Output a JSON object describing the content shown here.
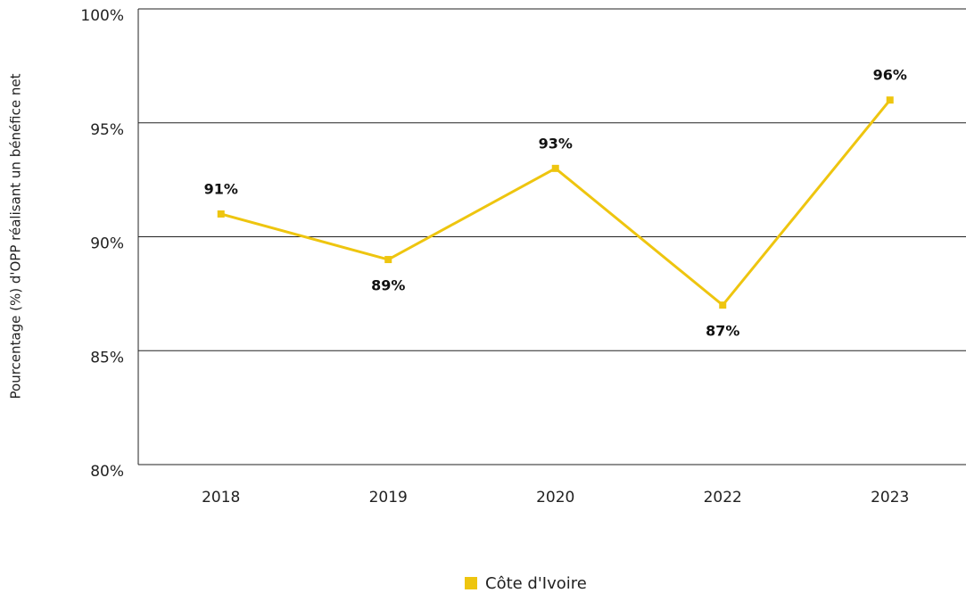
{
  "chart_data": {
    "type": "line",
    "y_axis_label": "Pourcentage (%) d'OPP réalisant un bénéfice net",
    "categories": [
      "2018",
      "2019",
      "2020",
      "2022",
      "2023"
    ],
    "series": [
      {
        "name": "Côte d'Ivoire",
        "color": "#eec50f",
        "values": [
          91,
          89,
          93,
          87,
          96
        ],
        "value_labels": [
          "91%",
          "89%",
          "93%",
          "87%",
          "96%"
        ]
      }
    ],
    "ylim": [
      80,
      100
    ],
    "yticks": [
      {
        "value": 80,
        "label": "80%"
      },
      {
        "value": 85,
        "label": "85%"
      },
      {
        "value": 90,
        "label": "90%"
      },
      {
        "value": 95,
        "label": "95%"
      },
      {
        "value": 100,
        "label": "100%"
      }
    ],
    "grid": true,
    "legend": "bottom"
  }
}
